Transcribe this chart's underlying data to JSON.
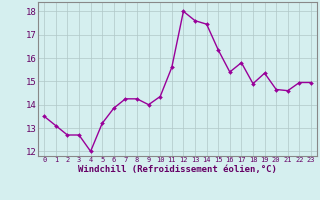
{
  "x": [
    0,
    1,
    2,
    3,
    4,
    5,
    6,
    7,
    8,
    9,
    10,
    11,
    12,
    13,
    14,
    15,
    16,
    17,
    18,
    19,
    20,
    21,
    22,
    23
  ],
  "y": [
    13.5,
    13.1,
    12.7,
    12.7,
    12.0,
    13.2,
    13.85,
    14.25,
    14.25,
    14.0,
    14.35,
    15.6,
    18.0,
    17.6,
    17.45,
    16.35,
    15.4,
    15.8,
    14.9,
    15.35,
    14.65,
    14.6,
    14.95,
    14.95
  ],
  "line_color": "#990099",
  "marker": "D",
  "marker_size": 2.0,
  "linewidth": 1.0,
  "bg_color": "#d5efef",
  "grid_color": "#b0c8c8",
  "xlabel": "Windchill (Refroidissement éolien,°C)",
  "xlabel_color": "#660066",
  "tick_color": "#660066",
  "ylim": [
    11.8,
    18.4
  ],
  "xlim": [
    -0.5,
    23.5
  ],
  "yticks": [
    12,
    13,
    14,
    15,
    16,
    17,
    18
  ],
  "xticks": [
    0,
    1,
    2,
    3,
    4,
    5,
    6,
    7,
    8,
    9,
    10,
    11,
    12,
    13,
    14,
    15,
    16,
    17,
    18,
    19,
    20,
    21,
    22,
    23
  ]
}
